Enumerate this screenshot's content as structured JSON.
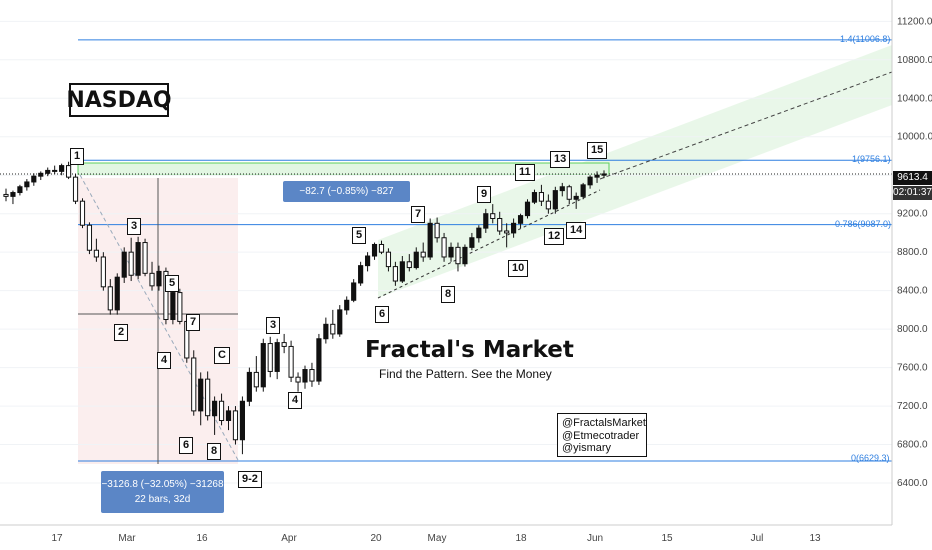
{
  "title": "NASDAQ",
  "brand": {
    "name": "Fractal's Market",
    "tagline": "Find the Pattern.  See the Money"
  },
  "handles": [
    "@FractalsMarket",
    "@Etmecotrader",
    "@yismary"
  ],
  "measure_up": "−82.7 (−0.85%) −827",
  "measure_down": [
    "−3126.8 (−32.05%) −31268",
    "22 bars, 32d"
  ],
  "fib_levels": [
    {
      "label": "1.4(11006.8)",
      "value": 11006.8
    },
    {
      "label": "1(9756.1)",
      "value": 9756.1
    },
    {
      "label": "0.786(9087.0)",
      "value": 9087.0
    },
    {
      "label": "0(6629.3)",
      "value": 6629.3
    }
  ],
  "price_tags": {
    "last": "9613.4",
    "countdown": "02:01:37"
  },
  "wave_labels": [
    "1",
    "2",
    "3",
    "4",
    "5",
    "6",
    "7",
    "8",
    "C",
    "9-2",
    "3",
    "4",
    "5",
    "6",
    "7",
    "8",
    "9",
    "10",
    "11",
    "12",
    "13",
    "14",
    "15"
  ],
  "colors": {
    "up": "#111111",
    "down": "#ffffff",
    "fib": "#2f7fe0",
    "channel": "#d7f0d7",
    "box_red": "#fbeeee",
    "stat": "#5b86c6"
  },
  "chart_data": {
    "type": "candlestick",
    "ylim": [
      6130,
      11380
    ],
    "yticks": [
      6400,
      6800,
      7200,
      7600,
      8000,
      8400,
      8800,
      9200,
      9600,
      10000,
      10400,
      10800,
      11200
    ],
    "xticks": [
      "17",
      "Mar",
      "16",
      "Apr",
      "20",
      "May",
      "18",
      "Jun",
      "15",
      "Jul",
      "13"
    ],
    "candles": [
      {
        "o": 9400,
        "h": 9460,
        "l": 9330,
        "c": 9380
      },
      {
        "o": 9380,
        "h": 9440,
        "l": 9300,
        "c": 9420
      },
      {
        "o": 9420,
        "h": 9500,
        "l": 9390,
        "c": 9480
      },
      {
        "o": 9480,
        "h": 9560,
        "l": 9440,
        "c": 9530
      },
      {
        "o": 9530,
        "h": 9620,
        "l": 9490,
        "c": 9590
      },
      {
        "o": 9590,
        "h": 9640,
        "l": 9550,
        "c": 9620
      },
      {
        "o": 9620,
        "h": 9680,
        "l": 9590,
        "c": 9650
      },
      {
        "o": 9650,
        "h": 9700,
        "l": 9610,
        "c": 9640
      },
      {
        "o": 9640,
        "h": 9720,
        "l": 9600,
        "c": 9700
      },
      {
        "o": 9700,
        "h": 9740,
        "l": 9560,
        "c": 9580
      },
      {
        "o": 9580,
        "h": 9610,
        "l": 9300,
        "c": 9330
      },
      {
        "o": 9330,
        "h": 9360,
        "l": 9050,
        "c": 9080
      },
      {
        "o": 9080,
        "h": 9110,
        "l": 8780,
        "c": 8820
      },
      {
        "o": 8820,
        "h": 8940,
        "l": 8700,
        "c": 8750
      },
      {
        "o": 8750,
        "h": 8800,
        "l": 8400,
        "c": 8440
      },
      {
        "o": 8440,
        "h": 8520,
        "l": 8150,
        "c": 8200
      },
      {
        "o": 8200,
        "h": 8580,
        "l": 8150,
        "c": 8540
      },
      {
        "o": 8540,
        "h": 8850,
        "l": 8480,
        "c": 8800
      },
      {
        "o": 8800,
        "h": 8950,
        "l": 8500,
        "c": 8560
      },
      {
        "o": 8560,
        "h": 8960,
        "l": 8520,
        "c": 8900
      },
      {
        "o": 8900,
        "h": 8940,
        "l": 8550,
        "c": 8580
      },
      {
        "o": 8580,
        "h": 8700,
        "l": 8400,
        "c": 8450
      },
      {
        "o": 8450,
        "h": 8660,
        "l": 8400,
        "c": 8600
      },
      {
        "o": 8600,
        "h": 8640,
        "l": 8050,
        "c": 8100
      },
      {
        "o": 8100,
        "h": 8420,
        "l": 8050,
        "c": 8380
      },
      {
        "o": 8380,
        "h": 8420,
        "l": 8050,
        "c": 8080
      },
      {
        "o": 8080,
        "h": 8140,
        "l": 7650,
        "c": 7700
      },
      {
        "o": 7700,
        "h": 7780,
        "l": 7100,
        "c": 7150
      },
      {
        "o": 7150,
        "h": 7550,
        "l": 7000,
        "c": 7480
      },
      {
        "o": 7480,
        "h": 7560,
        "l": 7050,
        "c": 7100
      },
      {
        "o": 7100,
        "h": 7300,
        "l": 6900,
        "c": 7250
      },
      {
        "o": 7250,
        "h": 7330,
        "l": 7000,
        "c": 7050
      },
      {
        "o": 7050,
        "h": 7200,
        "l": 6950,
        "c": 7150
      },
      {
        "o": 7150,
        "h": 7200,
        "l": 6800,
        "c": 6850
      },
      {
        "o": 6850,
        "h": 7300,
        "l": 6700,
        "c": 7250
      },
      {
        "o": 7250,
        "h": 7600,
        "l": 7200,
        "c": 7550
      },
      {
        "o": 7550,
        "h": 7720,
        "l": 7350,
        "c": 7400
      },
      {
        "o": 7400,
        "h": 7900,
        "l": 7350,
        "c": 7850
      },
      {
        "o": 7850,
        "h": 7920,
        "l": 7500,
        "c": 7560
      },
      {
        "o": 7560,
        "h": 7900,
        "l": 7480,
        "c": 7860
      },
      {
        "o": 7860,
        "h": 7950,
        "l": 7750,
        "c": 7820
      },
      {
        "o": 7820,
        "h": 7880,
        "l": 7450,
        "c": 7500
      },
      {
        "o": 7500,
        "h": 7550,
        "l": 7350,
        "c": 7450
      },
      {
        "o": 7450,
        "h": 7620,
        "l": 7380,
        "c": 7580
      },
      {
        "o": 7580,
        "h": 7650,
        "l": 7400,
        "c": 7460
      },
      {
        "o": 7460,
        "h": 7950,
        "l": 7420,
        "c": 7900
      },
      {
        "o": 7900,
        "h": 8120,
        "l": 7850,
        "c": 8050
      },
      {
        "o": 8050,
        "h": 8200,
        "l": 7900,
        "c": 7950
      },
      {
        "o": 7950,
        "h": 8250,
        "l": 7920,
        "c": 8200
      },
      {
        "o": 8200,
        "h": 8340,
        "l": 8150,
        "c": 8300
      },
      {
        "o": 8300,
        "h": 8520,
        "l": 8280,
        "c": 8480
      },
      {
        "o": 8480,
        "h": 8700,
        "l": 8450,
        "c": 8660
      },
      {
        "o": 8660,
        "h": 8800,
        "l": 8600,
        "c": 8760
      },
      {
        "o": 8760,
        "h": 8900,
        "l": 8720,
        "c": 8880
      },
      {
        "o": 8880,
        "h": 8920,
        "l": 8780,
        "c": 8800
      },
      {
        "o": 8800,
        "h": 8840,
        "l": 8600,
        "c": 8650
      },
      {
        "o": 8650,
        "h": 8700,
        "l": 8450,
        "c": 8500
      },
      {
        "o": 8500,
        "h": 8760,
        "l": 8480,
        "c": 8700
      },
      {
        "o": 8700,
        "h": 8780,
        "l": 8600,
        "c": 8640
      },
      {
        "o": 8640,
        "h": 8850,
        "l": 8620,
        "c": 8800
      },
      {
        "o": 8800,
        "h": 8900,
        "l": 8700,
        "c": 8750
      },
      {
        "o": 8750,
        "h": 9150,
        "l": 8720,
        "c": 9100
      },
      {
        "o": 9100,
        "h": 9160,
        "l": 8900,
        "c": 8950
      },
      {
        "o": 8950,
        "h": 9000,
        "l": 8700,
        "c": 8750
      },
      {
        "o": 8750,
        "h": 8900,
        "l": 8700,
        "c": 8850
      },
      {
        "o": 8850,
        "h": 8900,
        "l": 8600,
        "c": 8680
      },
      {
        "o": 8680,
        "h": 8880,
        "l": 8650,
        "c": 8850
      },
      {
        "o": 8850,
        "h": 9000,
        "l": 8820,
        "c": 8950
      },
      {
        "o": 8950,
        "h": 9080,
        "l": 8900,
        "c": 9050
      },
      {
        "o": 9050,
        "h": 9250,
        "l": 9000,
        "c": 9200
      },
      {
        "o": 9200,
        "h": 9300,
        "l": 9100,
        "c": 9150
      },
      {
        "o": 9150,
        "h": 9220,
        "l": 8980,
        "c": 9020
      },
      {
        "o": 9020,
        "h": 9100,
        "l": 8850,
        "c": 9000
      },
      {
        "o": 9000,
        "h": 9150,
        "l": 8950,
        "c": 9100
      },
      {
        "o": 9100,
        "h": 9200,
        "l": 9050,
        "c": 9180
      },
      {
        "o": 9180,
        "h": 9350,
        "l": 9150,
        "c": 9320
      },
      {
        "o": 9320,
        "h": 9450,
        "l": 9300,
        "c": 9420
      },
      {
        "o": 9420,
        "h": 9500,
        "l": 9280,
        "c": 9330
      },
      {
        "o": 9330,
        "h": 9400,
        "l": 9200,
        "c": 9250
      },
      {
        "o": 9250,
        "h": 9480,
        "l": 9200,
        "c": 9440
      },
      {
        "o": 9440,
        "h": 9520,
        "l": 9380,
        "c": 9480
      },
      {
        "o": 9480,
        "h": 9500,
        "l": 9300,
        "c": 9350
      },
      {
        "o": 9350,
        "h": 9420,
        "l": 9250,
        "c": 9380
      },
      {
        "o": 9380,
        "h": 9520,
        "l": 9350,
        "c": 9500
      },
      {
        "o": 9500,
        "h": 9600,
        "l": 9460,
        "c": 9580
      },
      {
        "o": 9580,
        "h": 9640,
        "l": 9520,
        "c": 9600
      },
      {
        "o": 9600,
        "h": 9650,
        "l": 9570,
        "c": 9613
      }
    ]
  }
}
